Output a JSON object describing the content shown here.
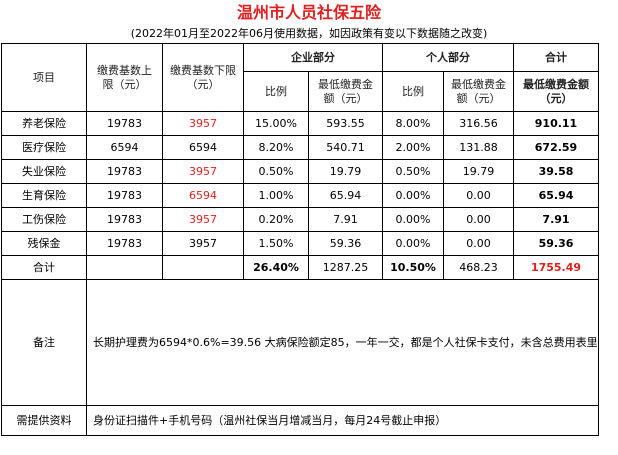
{
  "header": {
    "title": "温州市人员社保五险",
    "subtitle": "(2022年01月至2022年06月使用数据，如因政策有变以下数据随之改变)"
  },
  "columns": {
    "item": "项目",
    "upper": "缴费基数上限（元）",
    "lower": "缴费基数下限（元）",
    "company_group": "企业部分",
    "personal_group": "个人部分",
    "total_group": "合计",
    "ratio": "比例",
    "min_amount": "最低缴费金额（元）",
    "total_min_amount": "最低缴费金额（元）"
  },
  "rows": [
    {
      "name": "养老保险",
      "upper": "19783",
      "lower": "3957",
      "lower_red": true,
      "c_ratio": "15.00%",
      "c_amount": "593.55",
      "p_ratio": "8.00%",
      "p_amount": "316.56",
      "total": "910.11"
    },
    {
      "name": "医疗保险",
      "upper": "6594",
      "lower": "6594",
      "lower_red": false,
      "c_ratio": "8.20%",
      "c_amount": "540.71",
      "p_ratio": "2.00%",
      "p_amount": "131.88",
      "total": "672.59"
    },
    {
      "name": "失业保险",
      "upper": "19783",
      "lower": "3957",
      "lower_red": true,
      "c_ratio": "0.50%",
      "c_amount": "19.79",
      "p_ratio": "0.50%",
      "p_amount": "19.79",
      "total": "39.58"
    },
    {
      "name": "生育保险",
      "upper": "19783",
      "lower": "6594",
      "lower_red": true,
      "c_ratio": "1.00%",
      "c_amount": "65.94",
      "p_ratio": "0.00%",
      "p_amount": "0.00",
      "total": "65.94"
    },
    {
      "name": "工伤保险",
      "upper": "19783",
      "lower": "3957",
      "lower_red": true,
      "c_ratio": "0.20%",
      "c_amount": "7.91",
      "p_ratio": "0.00%",
      "p_amount": "0.00",
      "total": "7.91"
    },
    {
      "name": "残保金",
      "upper": "19783",
      "lower": "3957",
      "lower_red": false,
      "c_ratio": "1.50%",
      "c_amount": "59.36",
      "p_ratio": "0.00%",
      "p_amount": "0.00",
      "total": "59.36"
    }
  ],
  "totals": {
    "label": "合计",
    "c_ratio": "26.40%",
    "c_amount": "1287.25",
    "p_ratio": "10.50%",
    "p_amount": "468.23",
    "total": "1755.49"
  },
  "remark": {
    "label": "备注",
    "text": "长期护理费为6594*0.6%=39.56 大病保险额定85，一年一交，都是个人社保卡支付，未含总费用表里"
  },
  "materials": {
    "label": "需提供资料",
    "text": "身份证扫描件+手机号码（温州社保当月增减当月，每月24号截止申报）"
  },
  "colors": {
    "highlight_red": "#e02020",
    "border": "#000000"
  }
}
